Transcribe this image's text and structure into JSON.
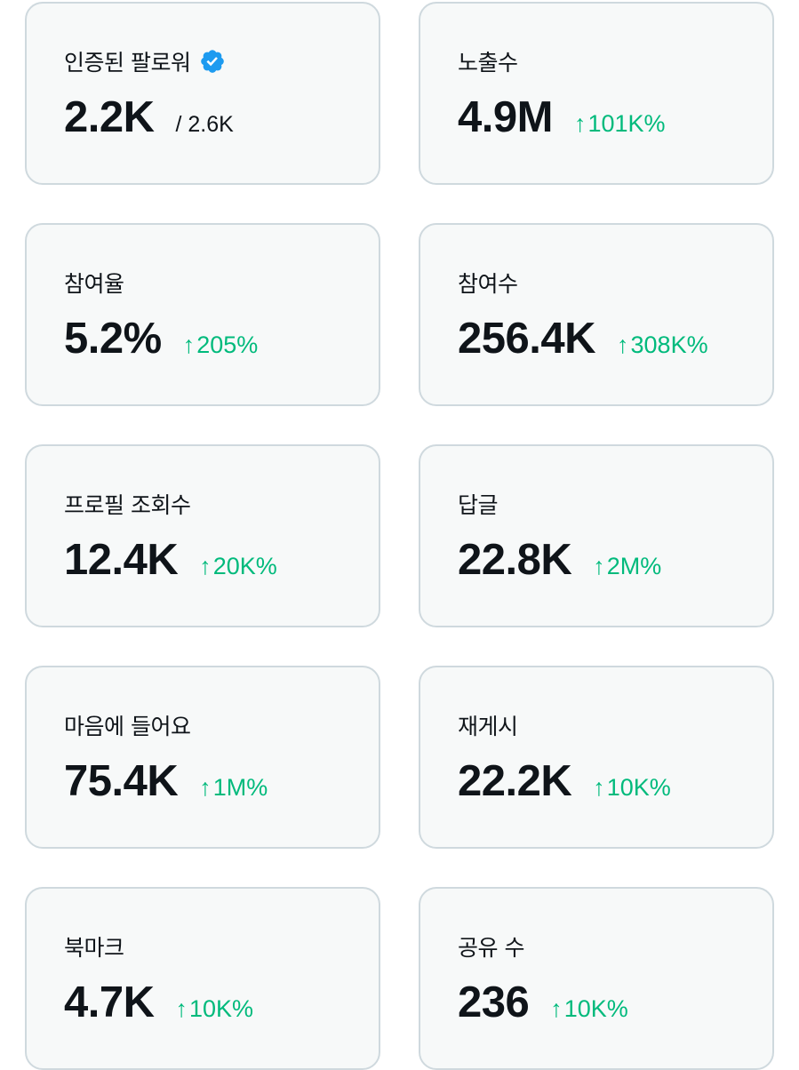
{
  "colors": {
    "card_background": "#f7f9f9",
    "card_border": "#cfd9de",
    "text": "#0f1419",
    "positive_change": "#00ba7c",
    "verified_badge": "#1d9bf0"
  },
  "cards": [
    {
      "title": "인증된 팔로워",
      "value": "2.2K",
      "total": "/ 2.6K",
      "icon": "verified-badge-icon"
    },
    {
      "title": "노출수",
      "value": "4.9M",
      "change": "101K%",
      "change_icon": "arrow-up-icon"
    },
    {
      "title": "참여율",
      "value": "5.2%",
      "change": "205%",
      "change_icon": "arrow-up-icon"
    },
    {
      "title": "참여수",
      "value": "256.4K",
      "change": "308K%",
      "change_icon": "arrow-up-icon"
    },
    {
      "title": "프로필 조회수",
      "value": "12.4K",
      "change": "20K%",
      "change_icon": "arrow-up-icon"
    },
    {
      "title": "답글",
      "value": "22.8K",
      "change": "2M%",
      "change_icon": "arrow-up-icon"
    },
    {
      "title": "마음에 들어요",
      "value": "75.4K",
      "change": "1M%",
      "change_icon": "arrow-up-icon"
    },
    {
      "title": "재게시",
      "value": "22.2K",
      "change": "10K%",
      "change_icon": "arrow-up-icon"
    },
    {
      "title": "북마크",
      "value": "4.7K",
      "change": "10K%",
      "change_icon": "arrow-up-icon"
    },
    {
      "title": "공유 수",
      "value": "236",
      "change": "10K%",
      "change_icon": "arrow-up-icon"
    }
  ]
}
